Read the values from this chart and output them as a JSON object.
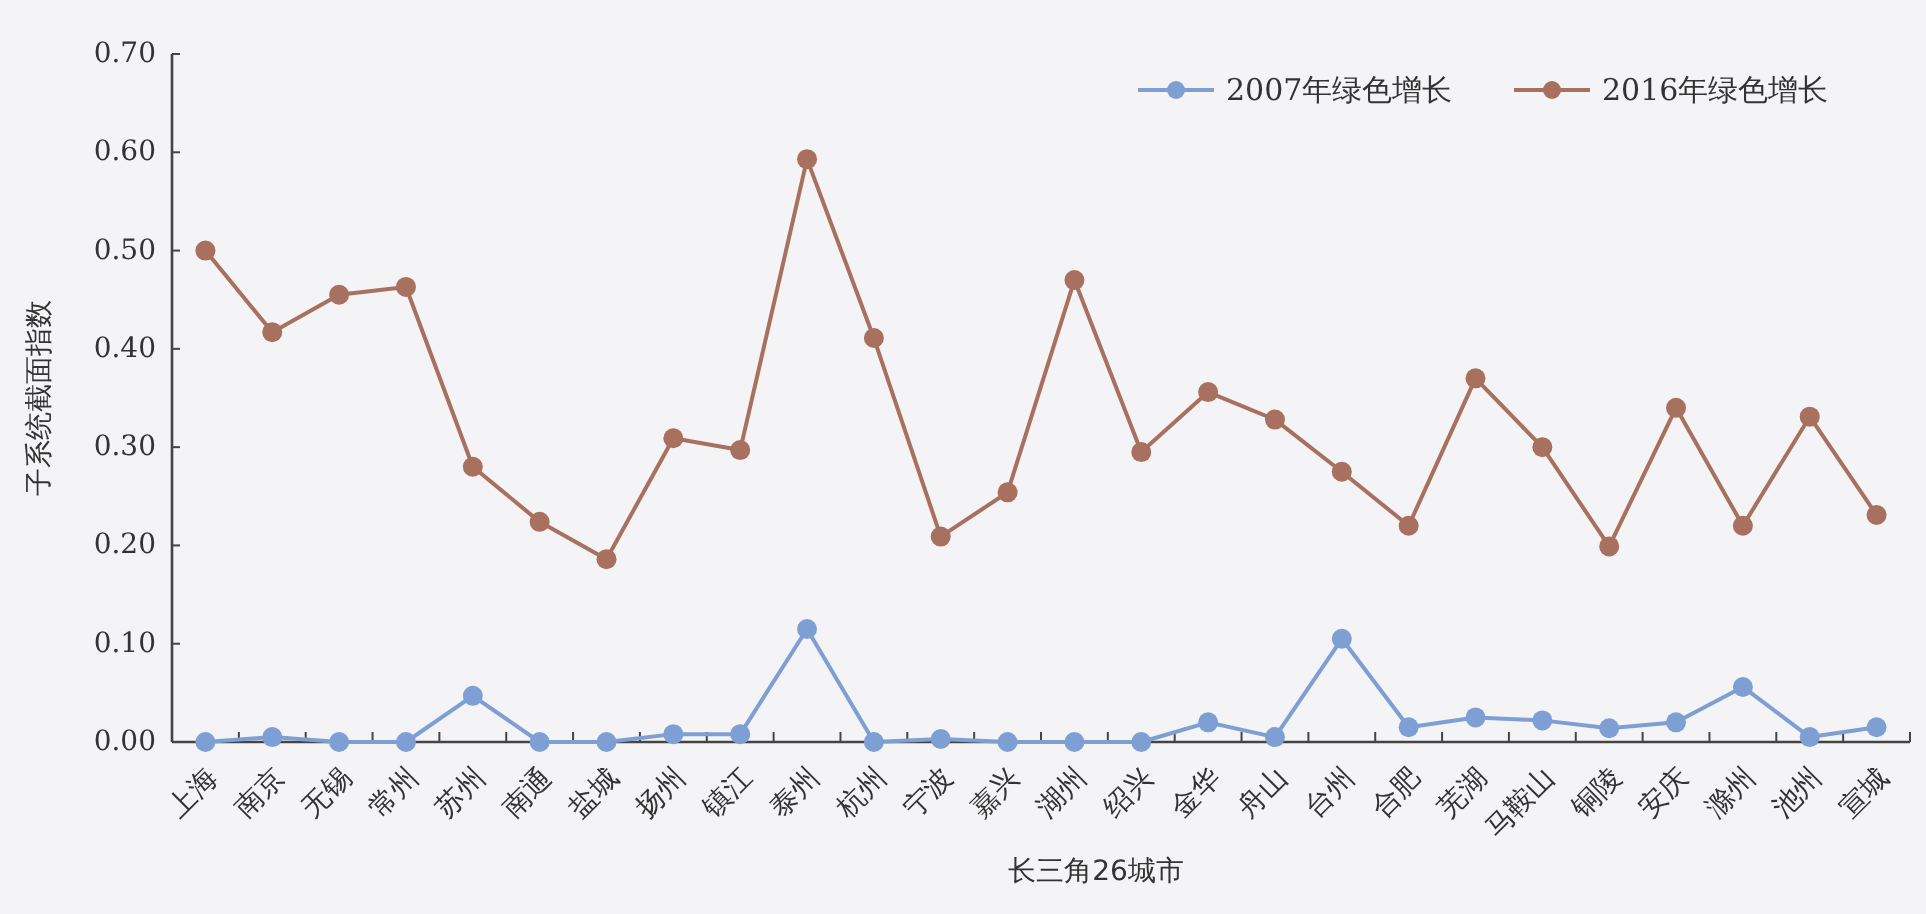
{
  "chart_data": {
    "type": "line",
    "xlabel": "长三角26城市",
    "ylabel": "子系统截面指数",
    "categories": [
      "上海",
      "南京",
      "无锡",
      "常州",
      "苏州",
      "南通",
      "盐城",
      "扬州",
      "镇江",
      "泰州",
      "杭州",
      "宁波",
      "嘉兴",
      "湖州",
      "绍兴",
      "金华",
      "舟山",
      "台州",
      "合肥",
      "芜湖",
      "马鞍山",
      "铜陵",
      "安庆",
      "滁州",
      "池州",
      "宣城"
    ],
    "series": [
      {
        "name": "2007年绿色增长",
        "color": "#7d9fd3",
        "values": [
          0.0,
          0.005,
          0.0,
          0.0,
          0.047,
          0.0,
          0.0,
          0.008,
          0.008,
          0.115,
          0.0,
          0.003,
          0.0,
          0.0,
          0.0,
          0.02,
          0.005,
          0.105,
          0.015,
          0.025,
          0.022,
          0.014,
          0.02,
          0.056,
          0.005,
          0.015
        ]
      },
      {
        "name": "2016年绿色增长",
        "color": "#a8705e",
        "values": [
          0.5,
          0.417,
          0.455,
          0.463,
          0.28,
          0.224,
          0.186,
          0.309,
          0.297,
          0.593,
          0.411,
          0.209,
          0.254,
          0.47,
          0.295,
          0.356,
          0.328,
          0.275,
          0.22,
          0.37,
          0.3,
          0.199,
          0.34,
          0.22,
          0.331,
          0.231
        ]
      }
    ],
    "ylim": [
      0,
      0.7
    ],
    "yticks": [
      {
        "value": 0,
        "label": "0.00"
      },
      {
        "value": 0.1,
        "label": "0.10"
      },
      {
        "value": 0.2,
        "label": "0.20"
      },
      {
        "value": 0.3,
        "label": "0.30"
      },
      {
        "value": 0.4,
        "label": "0.40"
      },
      {
        "value": 0.5,
        "label": "0.50"
      },
      {
        "value": 0.6,
        "label": "0.60"
      },
      {
        "value": 0.7,
        "label": "0.70"
      }
    ],
    "legend": "top right",
    "marker": "circle",
    "line_style": "solid",
    "grid": false
  }
}
